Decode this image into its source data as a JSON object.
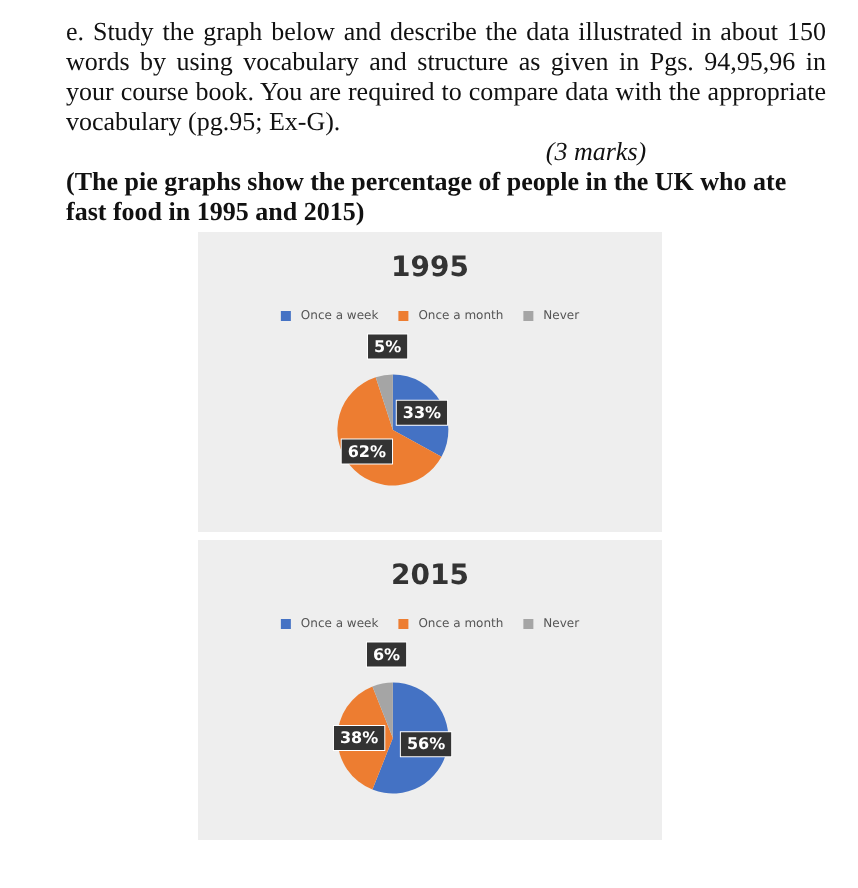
{
  "chart_data": [
    {
      "type": "pie",
      "title": "1995",
      "annotations": [
        "e. Study the graph below and describe the data illustrated in about 150 words by using vocabulary and structure as given in Pgs. 94,95,96 in your course book.  You are required to compare data with the appropriate vocabulary (pg.95; Ex-G).",
        "(3 marks)",
        "(The pie graphs show the percentage of people in the UK who ate fast food in 1995 and 2015)"
      ],
      "categories": [
        "Once a week",
        "Once a month",
        "Never"
      ],
      "values": [
        33,
        62,
        5
      ],
      "value_labels": [
        "33%",
        "62%",
        "5%"
      ],
      "colors": [
        "#4472c4",
        "#ed7d31",
        "#a5a5a5"
      ],
      "legend": "top",
      "data_labels": true
    },
    {
      "type": "pie",
      "title": "2015",
      "categories": [
        "Once a week",
        "Once a month",
        "Never"
      ],
      "values": [
        56,
        38,
        6
      ],
      "value_labels": [
        "56%",
        "38%",
        "6%"
      ],
      "colors": [
        "#4472c4",
        "#ed7d31",
        "#a5a5a5"
      ],
      "legend": "top",
      "data_labels": true
    }
  ]
}
